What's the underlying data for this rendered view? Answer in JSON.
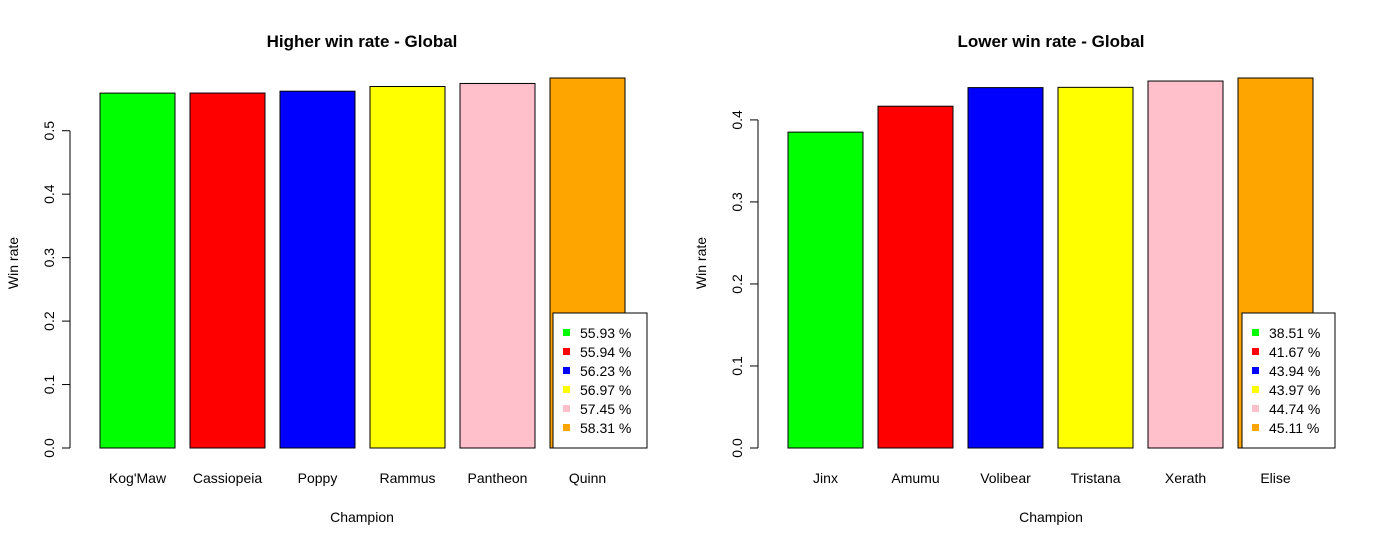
{
  "chart_data": [
    {
      "type": "bar",
      "title": "Higher win rate - Global",
      "xlabel": "Champion",
      "ylabel": "Win rate",
      "categories": [
        "Kog'Maw",
        "Cassiopeia",
        "Poppy",
        "Rammus",
        "Pantheon",
        "Quinn"
      ],
      "values": [
        0.5593,
        0.5594,
        0.5623,
        0.5697,
        0.5745,
        0.5831
      ],
      "colors": [
        "#00ff00",
        "#ff0000",
        "#0000ff",
        "#ffff00",
        "#ffc0cb",
        "#ffa500"
      ],
      "yticks": [
        "0.0",
        "0.1",
        "0.2",
        "0.3",
        "0.4",
        "0.5"
      ],
      "ylim": [
        0,
        0.5831
      ],
      "legend": [
        "55.93 %",
        "55.94 %",
        "56.23 %",
        "56.97 %",
        "57.45 %",
        "58.31 %"
      ],
      "legend_position": "bottom-right",
      "grid": false
    },
    {
      "type": "bar",
      "title": "Lower win rate - Global",
      "xlabel": "Champion",
      "ylabel": "Win rate",
      "categories": [
        "Jinx",
        "Amumu",
        "Volibear",
        "Tristana",
        "Xerath",
        "Elise"
      ],
      "values": [
        0.3851,
        0.4167,
        0.4394,
        0.4397,
        0.4474,
        0.4511
      ],
      "colors": [
        "#00ff00",
        "#ff0000",
        "#0000ff",
        "#ffff00",
        "#ffc0cb",
        "#ffa500"
      ],
      "yticks": [
        "0.0",
        "0.1",
        "0.2",
        "0.3",
        "0.4"
      ],
      "ylim": [
        0,
        0.4511
      ],
      "legend": [
        "38.51 %",
        "41.67 %",
        "43.94 %",
        "43.97 %",
        "44.74 %",
        "45.11 %"
      ],
      "legend_position": "bottom-right",
      "grid": false
    }
  ]
}
